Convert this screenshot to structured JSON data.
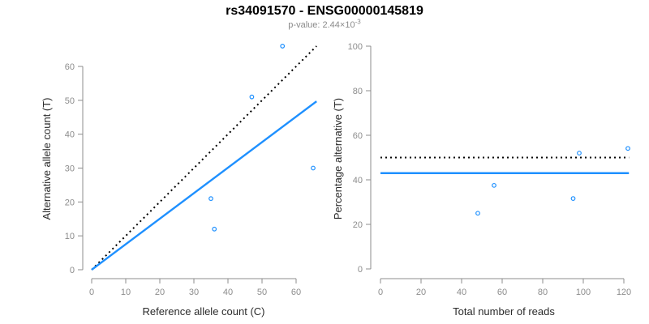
{
  "header": {
    "title": "rs34091570 - ENSG00000145819",
    "subtitle_main": "p-value: 2.44×10",
    "subtitle_exp": "-3"
  },
  "colors": {
    "accent_blue": "#1E90FF",
    "dotted_black": "#000000",
    "axis_gray": "#8c8c8c",
    "tick_label_gray": "#8c8c8c",
    "axis_title_color": "#2b2b2b",
    "background": "#ffffff"
  },
  "chart_data": [
    {
      "type": "scatter",
      "name": "allele-count-plot",
      "xlabel": "Reference allele count (C)",
      "ylabel": "Alternative allele count (T)",
      "xlim": [
        0,
        66
      ],
      "ylim": [
        0,
        66
      ],
      "xticks": [
        0,
        10,
        20,
        30,
        40,
        50,
        60
      ],
      "yticks": [
        0,
        10,
        20,
        30,
        40,
        50,
        60
      ],
      "grid": false,
      "legend": "none",
      "points": [
        [
          35,
          21
        ],
        [
          36,
          12
        ],
        [
          47,
          51
        ],
        [
          56,
          66
        ],
        [
          65,
          30
        ]
      ],
      "lines": [
        {
          "name": "expected-50-50-line",
          "style": "dotted",
          "color": "#000000",
          "slope": 1,
          "intercept": 0,
          "x1": 0,
          "x2": 66
        },
        {
          "name": "fitted-ratio-line",
          "style": "solid",
          "color": "#1E90FF",
          "slope": 0.753,
          "intercept": 0,
          "x1": 0,
          "x2": 66
        }
      ]
    },
    {
      "type": "scatter",
      "name": "percentage-plot",
      "xlabel": "Total number of reads",
      "ylabel": "Percentage alternative (T)",
      "xlim": [
        0,
        123
      ],
      "ylim": [
        0,
        100
      ],
      "xticks": [
        0,
        20,
        40,
        60,
        80,
        100,
        120
      ],
      "yticks": [
        0,
        20,
        40,
        60,
        80,
        100
      ],
      "grid": false,
      "legend": "none",
      "points": [
        [
          48,
          25
        ],
        [
          56,
          37.5
        ],
        [
          95,
          31.6
        ],
        [
          98,
          52
        ],
        [
          122,
          54.1
        ]
      ],
      "lines": [
        {
          "name": "expected-50-percent-line",
          "style": "dotted",
          "color": "#000000",
          "slope": 0,
          "intercept": 50,
          "x1": 0,
          "x2": 122.5
        },
        {
          "name": "mean-percentage-line",
          "style": "solid",
          "color": "#1E90FF",
          "slope": 0,
          "intercept": 43,
          "x1": 0,
          "x2": 122.5
        }
      ]
    }
  ]
}
